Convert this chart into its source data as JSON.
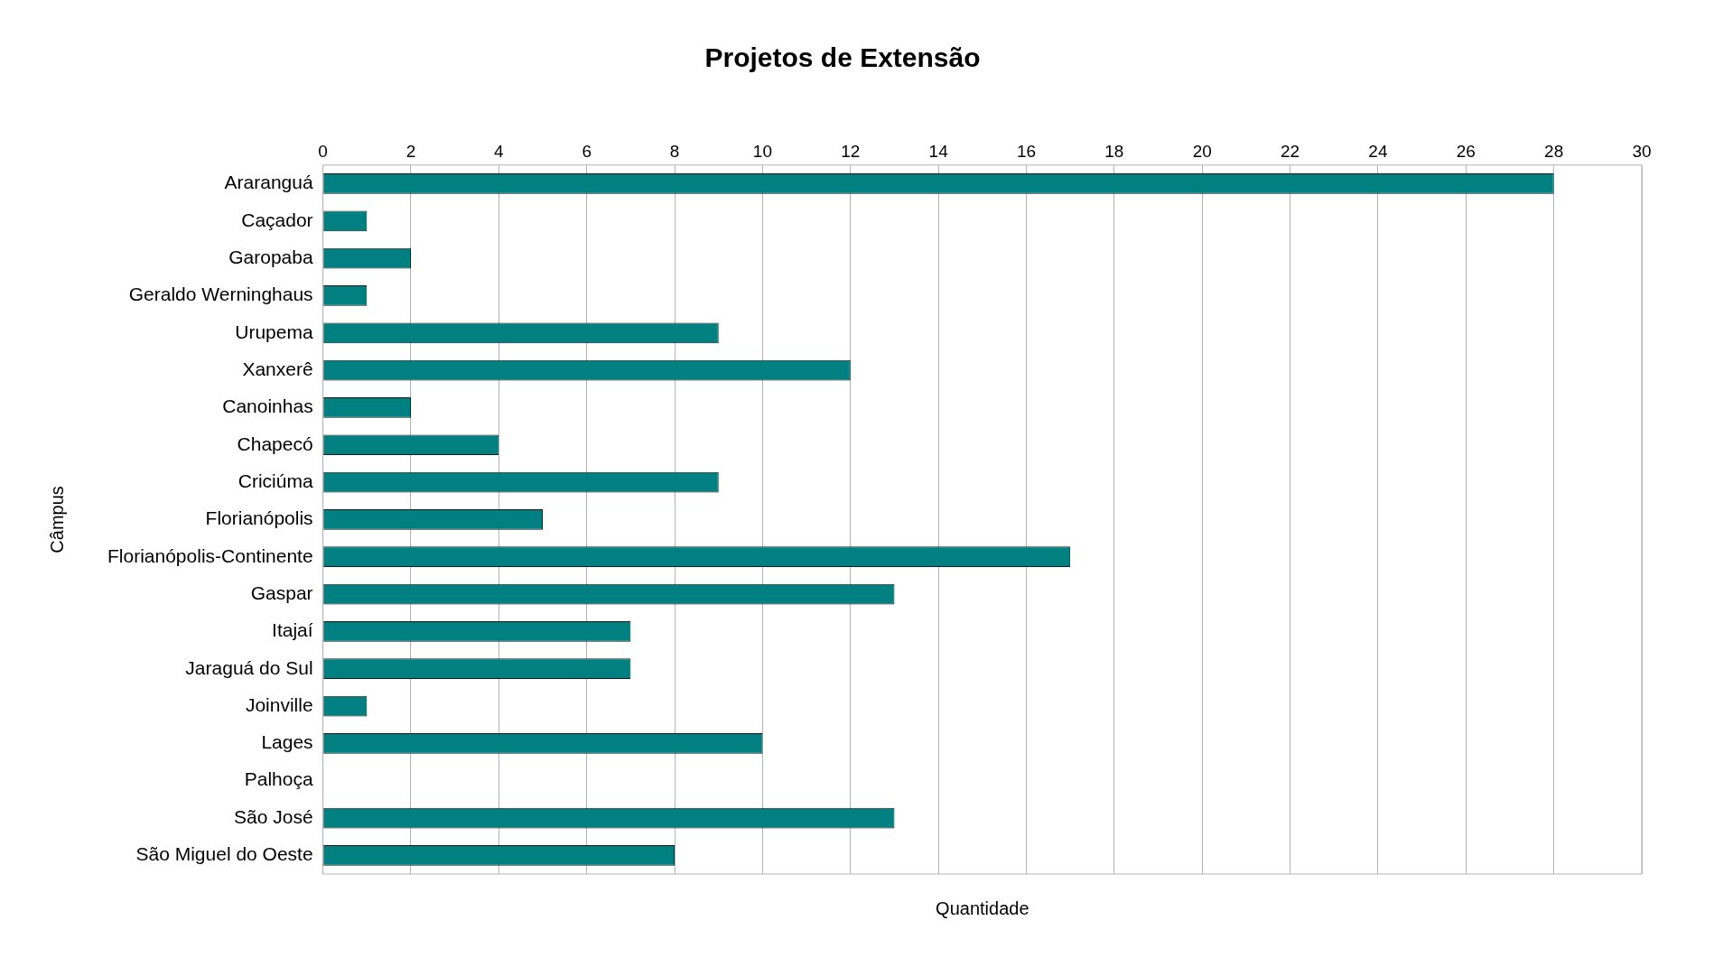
{
  "chart_data": {
    "type": "bar",
    "orientation": "horizontal",
    "title": "Projetos de Extensão",
    "xlabel": "Quantidade",
    "ylabel": "Câmpus",
    "categories": [
      "Araranguá",
      "Caçador",
      "Garopaba",
      "Geraldo Werninghaus",
      "Urupema",
      "Xanxerê",
      "Canoinhas",
      "Chapecó",
      "Criciúma",
      "Florianópolis",
      "Florianópolis-Continente",
      "Gaspar",
      "Itajaí",
      "Jaraguá do Sul",
      "Joinville",
      "Lages",
      "Palhoça",
      "São José",
      "São Miguel do Oeste"
    ],
    "values": [
      28,
      1,
      2,
      1,
      9,
      12,
      2,
      4,
      9,
      5,
      17,
      13,
      7,
      7,
      1,
      10,
      0,
      13,
      8
    ],
    "color": "#008080",
    "xlim": [
      0,
      30
    ],
    "xticks": [
      0,
      2,
      4,
      6,
      8,
      10,
      12,
      14,
      16,
      18,
      20,
      22,
      24,
      26,
      28,
      30
    ],
    "grid": "x",
    "legend": false
  }
}
